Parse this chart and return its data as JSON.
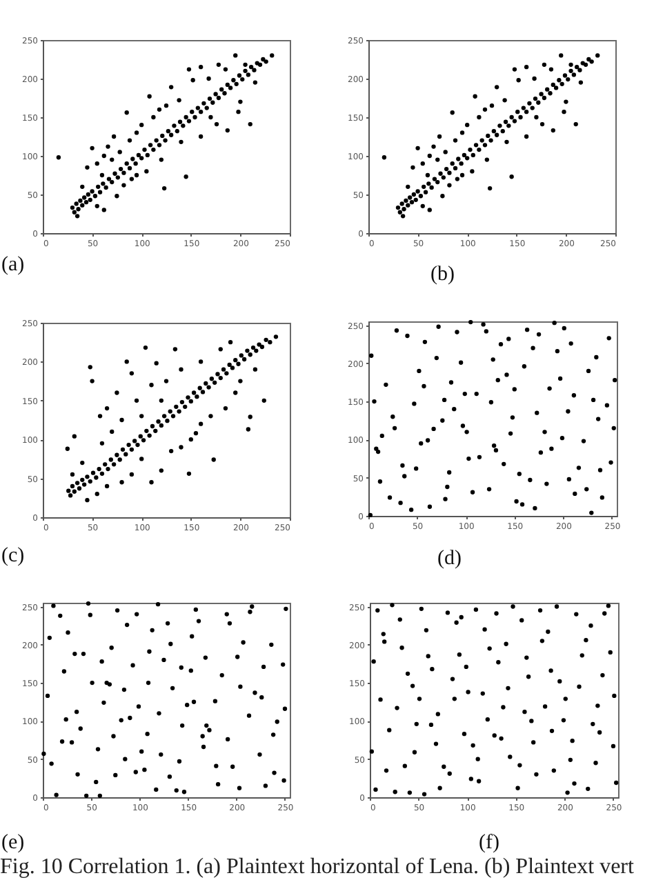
{
  "chart_data": [
    {
      "type": "scatter",
      "title": "(a)",
      "color": "#000000",
      "marker": "circle",
      "xlim": [
        0,
        250
      ],
      "ylim": [
        0,
        250
      ],
      "xticks": [
        0,
        50,
        100,
        150,
        200,
        250
      ],
      "yticks": [
        0,
        50,
        100,
        150,
        200,
        250
      ],
      "x": [
        30,
        32,
        34,
        36,
        38,
        40,
        42,
        44,
        46,
        48,
        50,
        53,
        56,
        58,
        61,
        64,
        67,
        70,
        73,
        76,
        79,
        82,
        85,
        88,
        91,
        94,
        97,
        100,
        103,
        106,
        109,
        112,
        115,
        118,
        121,
        124,
        127,
        130,
        133,
        136,
        139,
        142,
        145,
        148,
        151,
        154,
        157,
        160,
        163,
        166,
        169,
        172,
        175,
        178,
        181,
        184,
        187,
        190,
        193,
        196,
        199,
        202,
        205,
        208,
        211,
        214,
        217,
        220,
        223,
        226,
        16,
        40,
        45,
        50,
        55,
        60,
        62,
        66,
        70,
        72,
        78,
        85,
        88,
        95,
        100,
        108,
        112,
        118,
        125,
        130,
        138,
        148,
        152,
        160,
        168,
        178,
        185,
        195,
        232,
        205,
        55,
        62,
        75,
        82,
        95,
        105,
        123,
        120,
        145,
        140,
        160,
        176,
        170,
        187,
        198,
        210,
        200,
        215,
        90,
        35
      ],
      "values": [
        33,
        27,
        38,
        31,
        42,
        36,
        46,
        40,
        50,
        43,
        54,
        48,
        60,
        53,
        64,
        59,
        70,
        66,
        77,
        72,
        83,
        78,
        90,
        84,
        96,
        90,
        101,
        97,
        108,
        101,
        114,
        108,
        120,
        114,
        126,
        120,
        132,
        127,
        139,
        132,
        144,
        139,
        150,
        145,
        157,
        150,
        162,
        157,
        168,
        162,
        174,
        169,
        180,
        175,
        186,
        181,
        192,
        188,
        198,
        193,
        204,
        199,
        210,
        205,
        215,
        211,
        220,
        218,
        225,
        222,
        98,
        60,
        85,
        110,
        90,
        75,
        100,
        112,
        95,
        125,
        105,
        156,
        120,
        130,
        140,
        177,
        150,
        160,
        165,
        189,
        172,
        212,
        198,
        215,
        200,
        218,
        212,
        230,
        230,
        218,
        35,
        30,
        48,
        62,
        75,
        80,
        58,
        95,
        73,
        118,
        125,
        141,
        150,
        133,
        157,
        141,
        170,
        195,
        70,
        22
      ]
    },
    {
      "type": "scatter",
      "title": "(b)",
      "color": "#000000",
      "marker": "circle",
      "xlim": [
        0,
        250
      ],
      "ylim": [
        0,
        250
      ],
      "xticks": [
        0,
        50,
        100,
        150,
        200,
        250
      ],
      "yticks": [
        0,
        50,
        100,
        150,
        200,
        250
      ],
      "x": [
        30,
        32,
        34,
        36,
        38,
        40,
        42,
        44,
        46,
        48,
        50,
        53,
        56,
        58,
        61,
        64,
        67,
        70,
        73,
        76,
        79,
        82,
        85,
        88,
        91,
        94,
        97,
        100,
        103,
        106,
        109,
        112,
        115,
        118,
        121,
        124,
        127,
        130,
        133,
        136,
        139,
        142,
        145,
        148,
        151,
        154,
        157,
        160,
        163,
        166,
        169,
        172,
        175,
        178,
        181,
        184,
        187,
        190,
        193,
        196,
        199,
        202,
        205,
        208,
        211,
        214,
        217,
        220,
        223,
        226,
        16,
        40,
        45,
        50,
        55,
        60,
        62,
        66,
        70,
        72,
        78,
        85,
        88,
        95,
        100,
        108,
        112,
        118,
        125,
        130,
        138,
        148,
        152,
        160,
        168,
        178,
        185,
        195,
        232,
        205,
        55,
        62,
        75,
        82,
        95,
        105,
        123,
        120,
        145,
        140,
        160,
        176,
        170,
        187,
        198,
        210,
        200,
        215,
        90,
        35
      ],
      "values": [
        33,
        27,
        38,
        31,
        42,
        36,
        46,
        40,
        50,
        43,
        54,
        48,
        60,
        53,
        64,
        59,
        70,
        66,
        77,
        72,
        83,
        78,
        90,
        84,
        96,
        90,
        101,
        97,
        108,
        101,
        114,
        108,
        120,
        114,
        126,
        120,
        132,
        127,
        139,
        132,
        144,
        139,
        150,
        145,
        157,
        150,
        162,
        157,
        168,
        162,
        174,
        169,
        180,
        175,
        186,
        181,
        192,
        188,
        198,
        193,
        204,
        199,
        210,
        205,
        215,
        211,
        220,
        218,
        225,
        222,
        98,
        60,
        85,
        110,
        90,
        75,
        100,
        112,
        95,
        125,
        105,
        156,
        120,
        130,
        140,
        177,
        150,
        160,
        165,
        189,
        172,
        212,
        198,
        215,
        200,
        218,
        212,
        230,
        230,
        218,
        35,
        30,
        48,
        62,
        75,
        80,
        58,
        95,
        73,
        118,
        125,
        141,
        150,
        133,
        157,
        141,
        170,
        195,
        70,
        22
      ]
    },
    {
      "type": "scatter",
      "title": "(c)",
      "color": "#000000",
      "marker": "circle",
      "xlim": [
        0,
        250
      ],
      "ylim": [
        0,
        250
      ],
      "xticks": [
        0,
        50,
        100,
        150,
        200,
        250
      ],
      "yticks": [
        0,
        50,
        100,
        150,
        200,
        250
      ],
      "x": [
        26,
        28,
        30,
        32,
        35,
        37,
        40,
        42,
        45,
        48,
        51,
        54,
        57,
        60,
        63,
        66,
        69,
        72,
        75,
        78,
        81,
        84,
        87,
        90,
        93,
        96,
        99,
        102,
        105,
        108,
        111,
        114,
        117,
        120,
        123,
        126,
        129,
        132,
        135,
        138,
        141,
        144,
        147,
        150,
        153,
        156,
        159,
        162,
        165,
        168,
        171,
        174,
        177,
        180,
        183,
        186,
        189,
        192,
        195,
        198,
        201,
        204,
        207,
        210,
        213,
        216,
        219,
        222,
        226,
        230,
        25,
        32,
        48,
        50,
        58,
        65,
        70,
        75,
        80,
        85,
        90,
        95,
        104,
        110,
        115,
        125,
        134,
        140,
        160,
        180,
        190,
        236,
        224,
        208,
        210,
        195,
        185,
        173,
        148,
        160,
        140,
        130,
        120,
        110,
        100,
        90,
        80,
        65,
        45,
        55,
        150,
        170,
        200,
        215,
        120,
        100,
        60,
        40,
        30,
        155
      ],
      "values": [
        34,
        28,
        40,
        33,
        44,
        37,
        48,
        42,
        52,
        46,
        57,
        51,
        62,
        56,
        68,
        62,
        74,
        68,
        80,
        74,
        87,
        81,
        93,
        87,
        98,
        93,
        104,
        99,
        111,
        105,
        117,
        111,
        123,
        118,
        130,
        124,
        136,
        130,
        142,
        136,
        148,
        142,
        154,
        149,
        160,
        155,
        166,
        161,
        172,
        167,
        178,
        173,
        184,
        179,
        190,
        185,
        196,
        192,
        202,
        197,
        208,
        203,
        214,
        209,
        218,
        214,
        222,
        219,
        228,
        225,
        88,
        104,
        193,
        175,
        130,
        140,
        110,
        160,
        125,
        200,
        185,
        150,
        218,
        170,
        198,
        175,
        216,
        190,
        200,
        216,
        225,
        232,
        150,
        113,
        129,
        160,
        140,
        74,
        56,
        120,
        90,
        85,
        60,
        45,
        75,
        55,
        45,
        40,
        22,
        30,
        100,
        130,
        175,
        190,
        150,
        130,
        95,
        70,
        55,
        108
      ]
    },
    {
      "type": "scatter",
      "title": "(d)",
      "color": "#000000",
      "marker": "circle",
      "xlim": [
        0,
        255
      ],
      "ylim": [
        0,
        255
      ],
      "xticks": [
        0,
        50,
        100,
        150,
        200,
        250
      ],
      "yticks": [
        0,
        50,
        100,
        150,
        200,
        250
      ],
      "x": [
        3,
        12,
        25,
        8,
        40,
        33,
        57,
        61,
        49,
        72,
        88,
        79,
        95,
        103,
        111,
        97,
        124,
        136,
        129,
        142,
        155,
        148,
        163,
        171,
        186,
        177,
        194,
        205,
        212,
        199,
        226,
        238,
        231,
        247,
        252,
        18,
        44,
        67,
        83,
        118,
        139,
        160,
        183,
        208,
        229,
        245,
        6,
        29,
        52,
        76,
        91,
        114,
        133,
        152,
        169,
        191,
        216,
        240,
        14,
        37,
        63,
        85,
        107,
        128,
        146,
        173,
        197,
        221,
        249,
        22,
        47,
        70,
        99,
        121,
        144,
        166,
        188,
        211,
        234,
        253,
        10,
        35,
        58,
        81,
        105,
        126,
        150,
        175,
        201,
        224,
        2,
        27,
        54,
        78,
        101,
        131,
        158,
        181,
        206,
        236
      ],
      "values": [
        210,
        45,
        130,
        88,
        236,
        17,
        170,
        99,
        62,
        248,
        140,
        22,
        201,
        75,
        160,
        118,
        35,
        225,
        92,
        185,
        55,
        129,
        244,
        10,
        167,
        83,
        216,
        137,
        29,
        102,
        190,
        60,
        152,
        233,
        115,
        172,
        8,
        114,
        57,
        251,
        68,
        196,
        42,
        226,
        4,
        145,
        150,
        243,
        190,
        125,
        241,
        77,
        178,
        19,
        220,
        253,
        63,
        24,
        105,
        52,
        12,
        175,
        31,
        205,
        108,
        135,
        180,
        98,
        70,
        24,
        147,
        207,
        160,
        242,
        232,
        47,
        88,
        158,
        208,
        178,
        84,
        66,
        228,
        38,
        254,
        149,
        166,
        238,
        246,
        35,
        1,
        115,
        95,
        152,
        110,
        86,
        15,
        110,
        48,
        127
      ]
    },
    {
      "type": "scatter",
      "title": "(e)",
      "color": "#000000",
      "marker": "circle",
      "xlim": [
        0,
        255
      ],
      "ylim": [
        0,
        255
      ],
      "xticks": [
        0,
        50,
        100,
        150,
        200,
        250
      ],
      "yticks": [
        0,
        50,
        100,
        150,
        200,
        250
      ],
      "x": [
        5,
        18,
        30,
        42,
        55,
        66,
        77,
        90,
        102,
        113,
        125,
        138,
        149,
        161,
        172,
        185,
        196,
        207,
        219,
        230,
        242,
        251,
        9,
        22,
        35,
        47,
        59,
        71,
        84,
        96,
        108,
        119,
        131,
        143,
        154,
        166,
        178,
        190,
        201,
        213,
        224,
        236,
        248,
        14,
        26,
        39,
        51,
        63,
        75,
        87,
        99,
        110,
        122,
        134,
        146,
        158,
        169,
        181,
        193,
        204,
        216,
        228,
        239,
        250,
        1,
        11,
        24,
        36,
        49,
        61,
        73,
        85,
        97,
        109,
        120,
        132,
        144,
        156,
        168,
        179,
        191,
        203,
        214,
        226,
        238,
        249,
        7,
        20,
        33,
        45,
        57,
        69,
        81,
        93,
        105,
        117,
        129,
        141,
        153,
        165
      ],
      "values": [
        133,
        238,
        72,
        188,
        20,
        150,
        245,
        104,
        60,
        219,
        180,
        9,
        121,
        231,
        88,
        160,
        40,
        203,
        137,
        15,
        99,
        247,
        44,
        165,
        112,
        254,
        2,
        196,
        141,
        33,
        83,
        253,
        27,
        170,
        211,
        66,
        126,
        240,
        184,
        107,
        56,
        200,
        174,
        3,
        216,
        90,
        150,
        124,
        29,
        226,
        119,
        191,
        56,
        143,
        7,
        246,
        94,
        17,
        228,
        145,
        250,
        171,
        32,
        116,
        57,
        251,
        102,
        30,
        239,
        178,
        80,
        50,
        240,
        150,
        110,
        201,
        94,
        125,
        183,
        41,
        76,
        12,
        243,
        131,
        82,
        22,
        209,
        73,
        188,
        2,
        63,
        148,
        101,
        173,
        36,
        10,
        228,
        47,
        166,
        80
      ]
    },
    {
      "type": "scatter",
      "title": "(f)",
      "color": "#000000",
      "marker": "circle",
      "xlim": [
        0,
        255
      ],
      "ylim": [
        0,
        255
      ],
      "xticks": [
        0,
        50,
        100,
        150,
        200,
        250
      ],
      "yticks": [
        0,
        50,
        100,
        150,
        200,
        250
      ],
      "x": [
        2,
        15,
        28,
        41,
        53,
        64,
        76,
        89,
        101,
        112,
        123,
        135,
        147,
        159,
        171,
        183,
        195,
        206,
        218,
        229,
        241,
        253,
        11,
        23,
        36,
        48,
        60,
        72,
        85,
        97,
        109,
        121,
        132,
        144,
        156,
        168,
        180,
        192,
        203,
        215,
        227,
        239,
        250,
        4,
        17,
        31,
        44,
        56,
        68,
        80,
        92,
        104,
        116,
        128,
        140,
        152,
        163,
        175,
        187,
        199,
        210,
        222,
        234,
        245,
        8,
        20,
        33,
        46,
        58,
        70,
        82,
        94,
        106,
        118,
        130,
        142,
        154,
        166,
        177,
        189,
        201,
        212,
        224,
        236,
        247,
        6,
        26,
        39,
        63,
        87,
        111,
        137,
        161,
        186,
        208,
        232,
        251,
        14,
        51,
        99
      ],
      "values": [
        60,
        204,
        117,
        6,
        247,
        168,
        40,
        229,
        138,
        21,
        195,
        77,
        250,
        112,
        30,
        217,
        152,
        49,
        186,
        96,
        241,
        19,
        128,
        252,
        41,
        96,
        185,
        12,
        155,
        83,
        246,
        102,
        177,
        53,
        232,
        72,
        119,
        250,
        6,
        145,
        225,
        160,
        67,
        178,
        35,
        233,
        146,
        4,
        70,
        242,
        187,
        24,
        136,
        81,
        201,
        12,
        158,
        245,
        87,
        101,
        18,
        206,
        120,
        251,
        245,
        88,
        196,
        59,
        219,
        109,
        31,
        236,
        68,
        220,
        241,
        143,
        42,
        100,
        205,
        35,
        129,
        240,
        11,
        85,
        190,
        10,
        7,
        162,
        95,
        129,
        50,
        118,
        183,
        166,
        74,
        45,
        133,
        214,
        129,
        171
      ],
      "annotations": [
        "Fig. 10 Correlation 1. (a) Plaintext horizontal of Lena. (b) Plaintext vert"
      ]
    }
  ]
}
